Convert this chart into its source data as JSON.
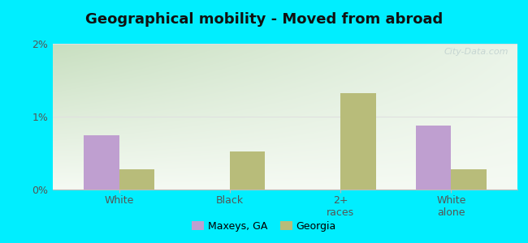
{
  "title": "Geographical mobility - Moved from abroad",
  "categories": [
    "White",
    "Black",
    "2+\nraces",
    "White\nalone"
  ],
  "series": {
    "Maxeys, GA": [
      0.75,
      0.0,
      0.0,
      0.88
    ],
    "Georgia": [
      0.28,
      0.52,
      1.32,
      0.28
    ]
  },
  "bar_colors": {
    "Maxeys, GA": "#bf9fd0",
    "Georgia": "#b8bc7a"
  },
  "ylim": [
    0,
    2.0
  ],
  "yticks": [
    0,
    1,
    2
  ],
  "ytick_labels": [
    "0%",
    "1%",
    "2%"
  ],
  "background_outer": "#00eeff",
  "gradient_top_left": "#c8dfc0",
  "gradient_top_right": "#eaf4e8",
  "gradient_bottom": "#f5faf3",
  "grid_color": "#e0e0e0",
  "bar_width": 0.32,
  "legend_labels": [
    "Maxeys, GA",
    "Georgia"
  ],
  "watermark": "City-Data.com"
}
